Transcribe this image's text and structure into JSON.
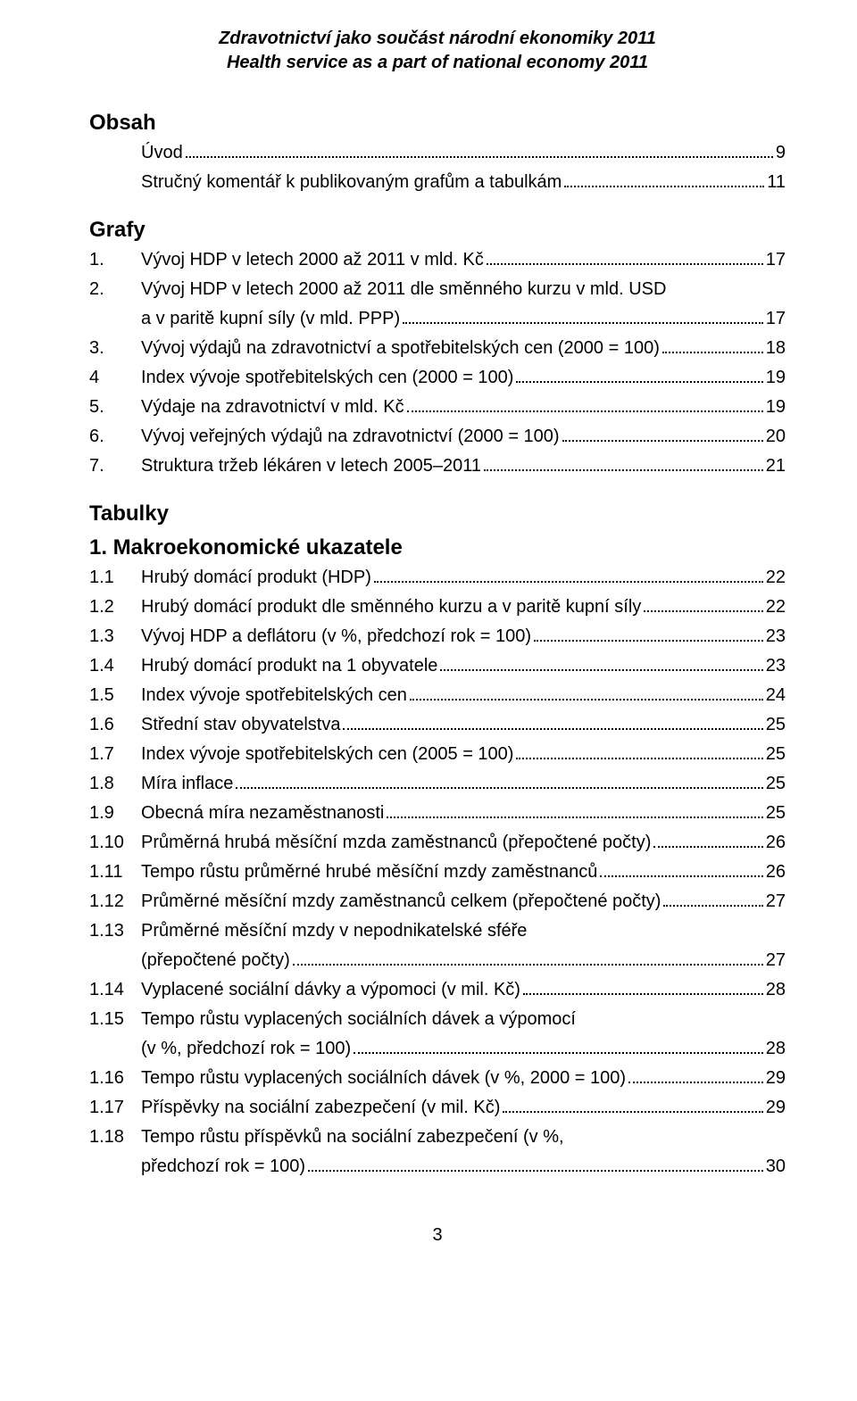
{
  "header": {
    "line1": "Zdravotnictví jako součást národní ekonomiky 2011",
    "line2": "Health service as a part of national economy 2011"
  },
  "sections": {
    "obsah": "Obsah",
    "grafy": "Grafy",
    "tabulky": "Tabulky",
    "makro": "1. Makroekonomické ukazatele"
  },
  "intro": [
    {
      "num": "",
      "label": "Úvod",
      "page": "9"
    },
    {
      "num": "",
      "label": "Stručný komentář k publikovaným grafům a tabulkám",
      "page": "11"
    }
  ],
  "grafy": [
    {
      "num": "1.",
      "label": "Vývoj HDP v letech 2000 až 2011 v mld. Kč",
      "page": "17"
    },
    {
      "num": "2.",
      "label": "Vývoj HDP v letech 2000 až 2011 dle směnného kurzu v mld. USD",
      "cont": "a v paritě kupní síly (v mld. PPP)",
      "page": "17"
    },
    {
      "num": "3.",
      "label": "Vývoj výdajů na zdravotnictví a spotřebitelských cen (2000 = 100)",
      "page": "18"
    },
    {
      "num": "4",
      "label": "Index vývoje spotřebitelských cen (2000 = 100)",
      "page": "19"
    },
    {
      "num": "5.",
      "label": "Výdaje na zdravotnictví v mld. Kč",
      "page": "19"
    },
    {
      "num": "6.",
      "label": "Vývoj veřejných výdajů na zdravotnictví (2000 = 100)",
      "page": "20"
    },
    {
      "num": "7.",
      "label": "Struktura tržeb lékáren v letech 2005–2011",
      "page": "21"
    }
  ],
  "makro": [
    {
      "num": "1.1",
      "label": "Hrubý domácí produkt (HDP)",
      "page": "22"
    },
    {
      "num": "1.2",
      "label": "Hrubý domácí produkt dle směnného kurzu a v paritě kupní síly",
      "page": "22"
    },
    {
      "num": "1.3",
      "label": "Vývoj HDP a deflátoru (v %, předchozí rok = 100)",
      "page": "23"
    },
    {
      "num": "1.4",
      "label": "Hrubý domácí produkt na 1 obyvatele",
      "page": "23"
    },
    {
      "num": "1.5",
      "label": "Index vývoje spotřebitelských cen",
      "page": "24"
    },
    {
      "num": "1.6",
      "label": "Střední stav obyvatelstva",
      "page": "25"
    },
    {
      "num": "1.7",
      "label": "Index vývoje spotřebitelských cen (2005 = 100)",
      "page": "25"
    },
    {
      "num": "1.8",
      "label": "Míra inflace",
      "page": "25"
    },
    {
      "num": "1.9",
      "label": "Obecná míra nezaměstnanosti",
      "page": "25"
    },
    {
      "num": "1.10",
      "label": "Průměrná hrubá měsíční mzda zaměstnanců (přepočtené počty)",
      "page": "26"
    },
    {
      "num": "1.11",
      "label": "Tempo růstu průměrné hrubé měsíční mzdy zaměstnanců",
      "page": "26"
    },
    {
      "num": "1.12",
      "label": "Průměrné měsíční mzdy zaměstnanců celkem (přepočtené počty)",
      "page": "27"
    },
    {
      "num": "1.13",
      "label": "Průměrné měsíční mzdy v nepodnikatelské sféře",
      "cont": "(přepočtené počty)",
      "page": "27"
    },
    {
      "num": "1.14",
      "label": "Vyplacené sociální dávky a výpomoci (v mil. Kč)",
      "page": "28"
    },
    {
      "num": "1.15",
      "label": "Tempo růstu vyplacených sociálních dávek a výpomocí",
      "cont": "(v %, předchozí rok = 100)",
      "page": "28"
    },
    {
      "num": "1.16",
      "label": "Tempo růstu vyplacených sociálních dávek (v %, 2000 = 100)",
      "page": "29"
    },
    {
      "num": "1.17",
      "label": "Příspěvky na sociální zabezpečení (v mil. Kč)",
      "page": "29"
    },
    {
      "num": "1.18",
      "label": "Tempo růstu příspěvků na sociální zabezpečení (v %,",
      "cont": "předchozí rok = 100)",
      "page": "30"
    }
  ],
  "page_number": "3"
}
